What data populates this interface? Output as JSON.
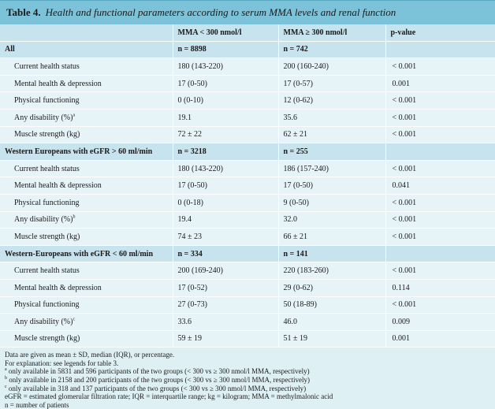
{
  "caption": {
    "label": "Table 4.",
    "title": "Health and functional parameters according to serum MMA levels and renal function"
  },
  "columns": [
    "",
    "MMA < 300 nmol/l",
    "MMA ≥ 300 nmol/l",
    "p-value"
  ],
  "groups": [
    {
      "name": "All",
      "n1": "n = 8898",
      "n2": "n = 742",
      "rows": [
        {
          "label": "Current health status",
          "v1": "180 (143-220)",
          "v2": "200 (160-240)",
          "p": "< 0.001"
        },
        {
          "label": "Mental health & depression",
          "v1": "17 (0-50)",
          "v2": "17 (0-57)",
          "p": "0.001"
        },
        {
          "label": "Physical functioning",
          "v1": "0 (0-10)",
          "v2": "12 (0-62)",
          "p": "< 0.001"
        },
        {
          "label": "Any disability (%)",
          "sup": "a",
          "v1": "19.1",
          "v2": "35.6",
          "p": "< 0.001"
        },
        {
          "label": "Muscle strength (kg)",
          "v1": "72 ± 22",
          "v2": "62 ± 21",
          "p": "< 0.001"
        }
      ]
    },
    {
      "name": "Western Europeans with eGFR > 60 ml/min",
      "n1": "n = 3218",
      "n2": "n = 255",
      "rows": [
        {
          "label": "Current health status",
          "v1": "180 (143-220)",
          "v2": "186 (157-240)",
          "p": "< 0.001"
        },
        {
          "label": "Mental health & depression",
          "v1": "17 (0-50)",
          "v2": "17 (0-50)",
          "p": "0.041"
        },
        {
          "label": "Physical functioning",
          "v1": "0 (0-18)",
          "v2": "9 (0-50)",
          "p": "< 0.001"
        },
        {
          "label": "Any disability (%)",
          "sup": "b",
          "v1": "19.4",
          "v2": "32.0",
          "p": "< 0.001"
        },
        {
          "label": "Muscle strength (kg)",
          "v1": "74 ± 23",
          "v2": "66 ± 21",
          "p": "< 0.001"
        }
      ]
    },
    {
      "name": "Western-Europeans with eGFR < 60 ml/min",
      "n1": "n = 334",
      "n2": "n = 141",
      "rows": [
        {
          "label": "Current health status",
          "v1": "200 (169-240)",
          "v2": "220 (183-260)",
          "p": "< 0.001"
        },
        {
          "label": "Mental health & depression",
          "v1": "17 (0-52)",
          "v2": "29 (0-62)",
          "p": "0.114"
        },
        {
          "label": "Physical functioning",
          "v1": "27 (0-73)",
          "v2": "50 (18-89)",
          "p": "< 0.001"
        },
        {
          "label": "Any disability (%)",
          "sup": "c",
          "v1": "33.6",
          "v2": "46.0",
          "p": "0.009"
        },
        {
          "label": "Muscle strength (kg)",
          "v1": "59 ± 19",
          "v2": "51 ± 19",
          "p": "0.001"
        }
      ]
    }
  ],
  "notes": [
    {
      "text": "Data are given as mean ± SD, median (IQR), or percentage."
    },
    {
      "text": "For explanation: see legends for table 3."
    },
    {
      "sup": "a",
      "text": " only available in 5831 and 596 participants of the two groups (< 300 vs ≥ 300 nmol/l MMA, respectively)"
    },
    {
      "sup": "b",
      "text": " only available in 2158 and 200 participants of the two groups (< 300 vs ≥ 300 nmol/l MMA, respectively)"
    },
    {
      "sup": "c",
      "text": " only available in 318 and 137 participants of the two groups (< 300 vs ≥ 300 nmol/l MMA, respectively)"
    },
    {
      "text": "eGFR = estimated glomerular filtration rate; IQR = interquartile range; kg = kilogram; MMA = methylmalonic acid"
    },
    {
      "text": "n = number of patients"
    }
  ]
}
